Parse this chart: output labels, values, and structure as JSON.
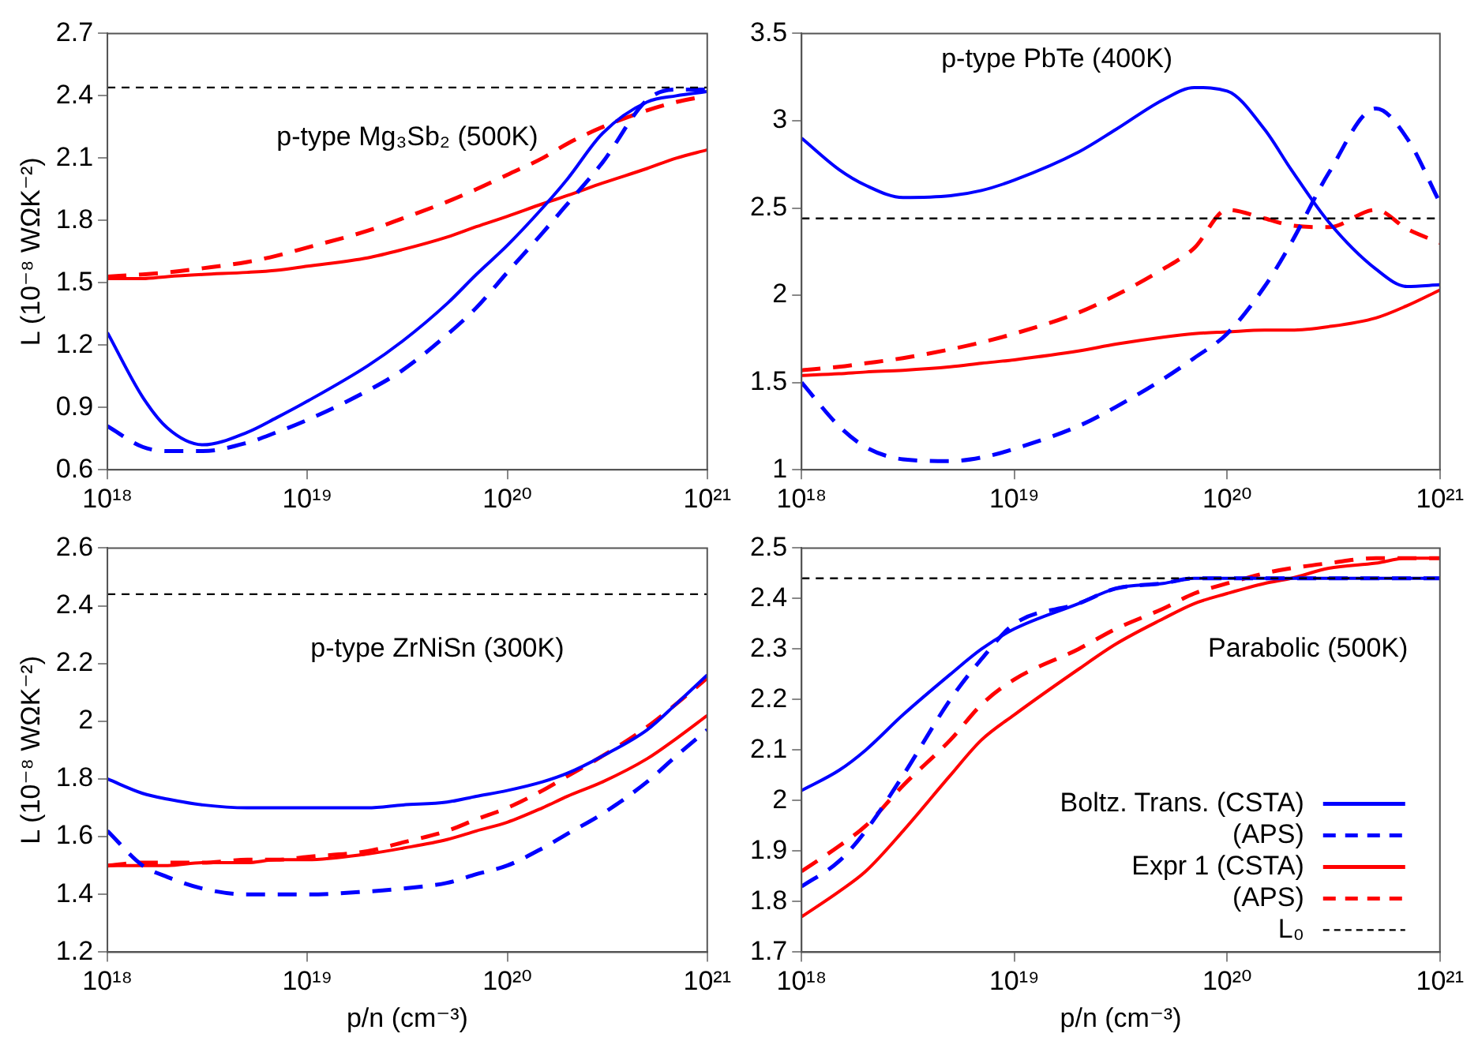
{
  "chart_data": [
    {
      "type": "line",
      "annotations": [
        "p-type Mg₃Sb₂ (500K)"
      ],
      "ylabel": "L (10⁻⁸ WΩK⁻²)",
      "log": "x",
      "xlim": [
        1e+18,
        1e+21
      ],
      "xticks": [
        {
          "value": 1e+18,
          "label": "10¹⁸"
        },
        {
          "value": 1e+19,
          "label": "10¹⁹"
        },
        {
          "value": 1e+20,
          "label": "10²⁰"
        },
        {
          "value": 1e+21,
          "label": "10²¹"
        }
      ],
      "ylim": [
        0.6,
        2.7
      ],
      "yticks": [
        0.6,
        0.9,
        1.2,
        1.5,
        1.8,
        2.1,
        2.4,
        2.7
      ],
      "grid": false,
      "legend": false,
      "marker": "none",
      "x": [
        1e+18,
        1.5e+18,
        2e+18,
        3e+18,
        5e+18,
        7e+18,
        1e+19,
        2e+19,
        3e+19,
        5e+19,
        7e+19,
        1e+20,
        1.5e+20,
        2e+20,
        3e+20,
        5e+20,
        7e+20,
        1e+21
      ],
      "series": [
        {
          "color": "#0000ff",
          "line_style": "solid",
          "values": [
            1.26,
            0.95,
            0.8,
            0.72,
            0.78,
            0.85,
            0.93,
            1.1,
            1.22,
            1.4,
            1.54,
            1.68,
            1.86,
            2.0,
            2.22,
            2.37,
            2.4,
            2.42
          ]
        },
        {
          "color": "#0000ff",
          "line_style": "dashed",
          "values": [
            0.81,
            0.71,
            0.69,
            0.69,
            0.73,
            0.78,
            0.84,
            0.98,
            1.08,
            1.25,
            1.38,
            1.55,
            1.74,
            1.88,
            2.08,
            2.38,
            2.43,
            2.43
          ]
        },
        {
          "color": "#ff0000",
          "line_style": "solid",
          "values": [
            1.52,
            1.52,
            1.53,
            1.54,
            1.55,
            1.56,
            1.58,
            1.62,
            1.66,
            1.72,
            1.77,
            1.82,
            1.88,
            1.92,
            1.98,
            2.05,
            2.1,
            2.14
          ]
        },
        {
          "color": "#ff0000",
          "line_style": "dashed",
          "values": [
            1.53,
            1.54,
            1.55,
            1.57,
            1.6,
            1.63,
            1.67,
            1.75,
            1.81,
            1.89,
            1.95,
            2.02,
            2.1,
            2.17,
            2.25,
            2.33,
            2.37,
            2.4
          ]
        }
      ],
      "ref_lines": [
        {
          "axis": "y",
          "value": 2.44,
          "color": "#000000",
          "line_style": "dashed"
        }
      ]
    },
    {
      "type": "line",
      "annotations": [
        "p-type PbTe (400K)"
      ],
      "log": "x",
      "xlim": [
        1e+18,
        1e+21
      ],
      "xticks": [
        {
          "value": 1e+18,
          "label": "10¹⁸"
        },
        {
          "value": 1e+19,
          "label": "10¹⁹"
        },
        {
          "value": 1e+20,
          "label": "10²⁰"
        },
        {
          "value": 1e+21,
          "label": "10²¹"
        }
      ],
      "ylim": [
        1,
        3.5
      ],
      "yticks": [
        1,
        1.5,
        2,
        2.5,
        3,
        3.5
      ],
      "grid": false,
      "legend": false,
      "marker": "none",
      "x": [
        1e+18,
        1.5e+18,
        2e+18,
        3e+18,
        5e+18,
        7e+18,
        1e+19,
        2e+19,
        3e+19,
        5e+19,
        7e+19,
        1e+20,
        1.5e+20,
        2e+20,
        3e+20,
        5e+20,
        7e+20,
        1e+21
      ],
      "series": [
        {
          "color": "#0000ff",
          "line_style": "solid",
          "values": [
            2.9,
            2.72,
            2.63,
            2.56,
            2.57,
            2.6,
            2.66,
            2.82,
            2.95,
            3.12,
            3.19,
            3.17,
            2.95,
            2.72,
            2.42,
            2.15,
            2.05,
            2.06
          ]
        },
        {
          "color": "#0000ff",
          "line_style": "dashed",
          "values": [
            1.5,
            1.25,
            1.13,
            1.06,
            1.05,
            1.07,
            1.12,
            1.25,
            1.36,
            1.52,
            1.64,
            1.78,
            2.05,
            2.3,
            2.7,
            3.07,
            2.9,
            2.53
          ]
        },
        {
          "color": "#ff0000",
          "line_style": "solid",
          "values": [
            1.54,
            1.55,
            1.56,
            1.57,
            1.59,
            1.61,
            1.63,
            1.68,
            1.72,
            1.76,
            1.78,
            1.79,
            1.8,
            1.8,
            1.82,
            1.87,
            1.94,
            2.03
          ]
        },
        {
          "color": "#ff0000",
          "line_style": "dashed",
          "values": [
            1.57,
            1.59,
            1.61,
            1.64,
            1.69,
            1.73,
            1.78,
            1.9,
            2.0,
            2.15,
            2.27,
            2.49,
            2.44,
            2.4,
            2.39,
            2.49,
            2.38,
            2.3
          ]
        }
      ],
      "ref_lines": [
        {
          "axis": "y",
          "value": 2.44,
          "color": "#000000",
          "line_style": "dashed"
        }
      ]
    },
    {
      "type": "line",
      "annotations": [
        "p-type ZrNiSn (300K)"
      ],
      "xlabel": "p/n (cm⁻³)",
      "ylabel": "L (10⁻⁸ WΩK⁻²)",
      "log": "x",
      "xlim": [
        1e+18,
        1e+21
      ],
      "xticks": [
        {
          "value": 1e+18,
          "label": "10¹⁸"
        },
        {
          "value": 1e+19,
          "label": "10¹⁹"
        },
        {
          "value": 1e+20,
          "label": "10²⁰"
        },
        {
          "value": 1e+21,
          "label": "10²¹"
        }
      ],
      "ylim": [
        1.2,
        2.6
      ],
      "yticks": [
        1.2,
        1.4,
        1.6,
        1.8,
        2,
        2.2,
        2.4,
        2.6
      ],
      "grid": false,
      "legend": false,
      "marker": "none",
      "x": [
        1e+18,
        1.5e+18,
        2e+18,
        3e+18,
        5e+18,
        7e+18,
        1e+19,
        2e+19,
        3e+19,
        5e+19,
        7e+19,
        1e+20,
        1.5e+20,
        2e+20,
        3e+20,
        5e+20,
        7e+20,
        1e+21
      ],
      "series": [
        {
          "color": "#0000ff",
          "line_style": "solid",
          "values": [
            1.8,
            1.75,
            1.73,
            1.71,
            1.7,
            1.7,
            1.7,
            1.7,
            1.71,
            1.72,
            1.74,
            1.76,
            1.79,
            1.82,
            1.88,
            1.97,
            2.06,
            2.16
          ]
        },
        {
          "color": "#0000ff",
          "line_style": "dashed",
          "values": [
            1.62,
            1.5,
            1.46,
            1.42,
            1.4,
            1.4,
            1.4,
            1.41,
            1.42,
            1.44,
            1.47,
            1.5,
            1.56,
            1.61,
            1.68,
            1.79,
            1.88,
            1.97
          ]
        },
        {
          "color": "#ff0000",
          "line_style": "solid",
          "values": [
            1.5,
            1.5,
            1.5,
            1.51,
            1.51,
            1.52,
            1.52,
            1.54,
            1.56,
            1.59,
            1.62,
            1.65,
            1.7,
            1.74,
            1.79,
            1.87,
            1.94,
            2.02
          ]
        },
        {
          "color": "#ff0000",
          "line_style": "dashed",
          "values": [
            1.5,
            1.51,
            1.51,
            1.51,
            1.52,
            1.52,
            1.53,
            1.55,
            1.58,
            1.62,
            1.66,
            1.7,
            1.76,
            1.81,
            1.88,
            1.98,
            2.06,
            2.15
          ]
        }
      ],
      "ref_lines": [
        {
          "axis": "y",
          "value": 2.44,
          "color": "#000000",
          "line_style": "dashed"
        }
      ]
    },
    {
      "type": "line",
      "annotations": [
        "Parabolic (500K)"
      ],
      "xlabel": "p/n (cm⁻³)",
      "log": "x",
      "xlim": [
        1e+18,
        1e+21
      ],
      "xticks": [
        {
          "value": 1e+18,
          "label": "10¹⁸"
        },
        {
          "value": 1e+19,
          "label": "10¹⁹"
        },
        {
          "value": 1e+20,
          "label": "10²⁰"
        },
        {
          "value": 1e+21,
          "label": "10²¹"
        }
      ],
      "ylim": [
        1.7,
        2.5
      ],
      "yticks": [
        1.7,
        1.8,
        1.9,
        2,
        2.1,
        2.2,
        2.3,
        2.4,
        2.5
      ],
      "grid": false,
      "legend": "bottom right",
      "marker": "none",
      "x": [
        1e+18,
        1.5e+18,
        2e+18,
        3e+18,
        5e+18,
        7e+18,
        1e+19,
        2e+19,
        3e+19,
        5e+19,
        7e+19,
        1e+20,
        1.5e+20,
        2e+20,
        3e+20,
        5e+20,
        7e+20,
        1e+21
      ],
      "series": [
        {
          "name": "Boltz. Trans. (CSTA)",
          "color": "#0000ff",
          "line_style": "solid",
          "values": [
            2.02,
            2.06,
            2.1,
            2.17,
            2.25,
            2.3,
            2.34,
            2.39,
            2.42,
            2.43,
            2.44,
            2.44,
            2.44,
            2.44,
            2.44,
            2.44,
            2.44,
            2.44
          ]
        },
        {
          "name": "(APS)",
          "color": "#0000ff",
          "line_style": "dashed",
          "values": [
            1.83,
            1.88,
            1.94,
            2.05,
            2.2,
            2.28,
            2.35,
            2.39,
            2.42,
            2.43,
            2.44,
            2.44,
            2.44,
            2.44,
            2.44,
            2.44,
            2.44,
            2.44
          ]
        },
        {
          "name": "Expr 1 (CSTA)",
          "color": "#ff0000",
          "line_style": "solid",
          "values": [
            1.77,
            1.82,
            1.86,
            1.94,
            2.05,
            2.12,
            2.17,
            2.26,
            2.31,
            2.36,
            2.39,
            2.41,
            2.43,
            2.44,
            2.46,
            2.47,
            2.48,
            2.48
          ]
        },
        {
          "name": "(APS)",
          "color": "#ff0000",
          "line_style": "dashed",
          "values": [
            1.86,
            1.91,
            1.95,
            2.03,
            2.12,
            2.19,
            2.24,
            2.3,
            2.34,
            2.38,
            2.41,
            2.43,
            2.45,
            2.46,
            2.47,
            2.48,
            2.48,
            2.48
          ]
        }
      ],
      "ref_lines": [
        {
          "axis": "y",
          "value": 2.44,
          "label": "L₀",
          "color": "#000000",
          "line_style": "dashed"
        }
      ]
    }
  ]
}
